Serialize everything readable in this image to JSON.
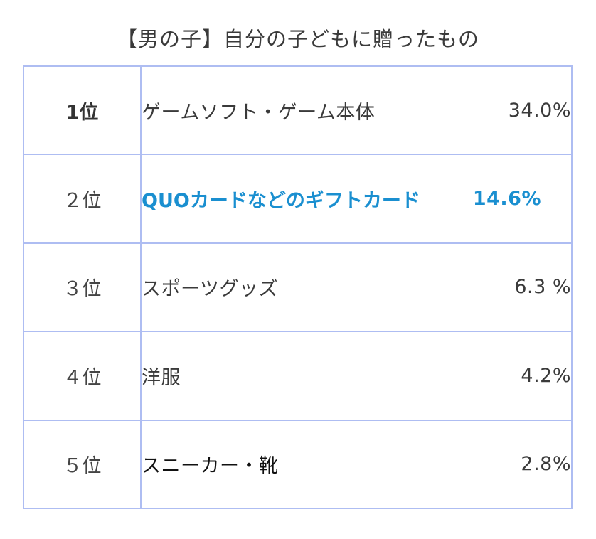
{
  "chart_data": {
    "type": "table",
    "title": "【男の子】自分の子どもに贈ったもの",
    "rows": [
      {
        "rank": "1位",
        "item": "ゲームソフト・ゲーム本体",
        "percent": "34.0%",
        "value": 34.0
      },
      {
        "rank": "２位",
        "item": "QUOカードなどのギフトカード",
        "percent": "14.6%",
        "value": 14.6
      },
      {
        "rank": "３位",
        "item": "スポーツグッズ",
        "percent": "6.3 %",
        "value": 6.3
      },
      {
        "rank": "４位",
        "item": "洋服",
        "percent": "4.2%",
        "value": 4.2
      },
      {
        "rank": "５位",
        "item": "スニーカー・靴",
        "percent": "2.8%",
        "value": 2.8
      }
    ],
    "highlight_row": 2
  },
  "colors": {
    "border": "#aebdf2",
    "highlight_text": "#1a8fd0",
    "text": "#3a3a3a"
  }
}
